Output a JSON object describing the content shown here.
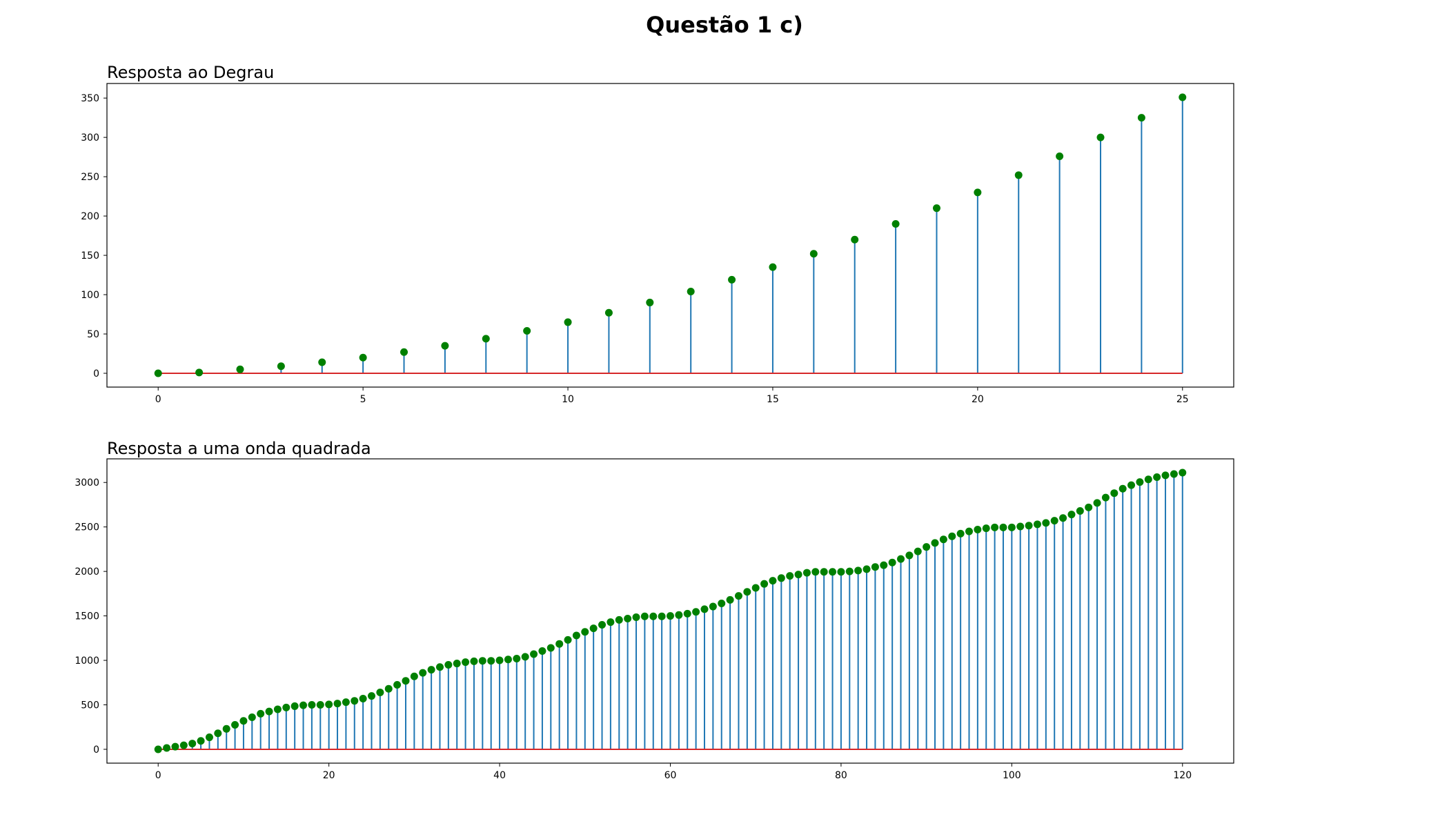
{
  "figure": {
    "suptitle": "Questão 1 c)"
  },
  "chart_data": [
    {
      "type": "stem",
      "title": "Resposta ao Degrau",
      "xlabel": "",
      "ylabel": "",
      "x": [
        0,
        1,
        2,
        3,
        4,
        5,
        6,
        7,
        8,
        9,
        10,
        11,
        12,
        13,
        14,
        15,
        16,
        17,
        18,
        19,
        20,
        21,
        22,
        23,
        24,
        25
      ],
      "values": [
        0,
        1,
        5,
        9,
        14,
        20,
        27,
        35,
        44,
        54,
        65,
        77,
        90,
        104,
        119,
        135,
        152,
        170,
        190,
        210,
        230,
        252,
        276,
        300,
        325,
        351
      ],
      "xlim": [
        -1.25,
        26.25
      ],
      "ylim": [
        -17.55,
        368.55
      ],
      "xticks": [
        0,
        5,
        10,
        15,
        20,
        25
      ],
      "yticks": [
        0,
        50,
        100,
        150,
        200,
        250,
        300,
        350
      ],
      "grid": false,
      "colors": {
        "stem": "#1f77b4",
        "marker": "#008000",
        "baseline": "#d62728"
      }
    },
    {
      "type": "stem",
      "title": "Resposta a uma onda quadrada",
      "xlabel": "",
      "ylabel": "",
      "x": [
        0,
        1,
        2,
        3,
        4,
        5,
        6,
        7,
        8,
        9,
        10,
        11,
        12,
        13,
        14,
        15,
        16,
        17,
        18,
        19,
        20,
        21,
        22,
        23,
        24,
        25,
        26,
        27,
        28,
        29,
        30,
        31,
        32,
        33,
        34,
        35,
        36,
        37,
        38,
        39,
        40,
        41,
        42,
        43,
        44,
        45,
        46,
        47,
        48,
        49,
        50,
        51,
        52,
        53,
        54,
        55,
        56,
        57,
        58,
        59,
        60,
        61,
        62,
        63,
        64,
        65,
        66,
        67,
        68,
        69,
        70,
        71,
        72,
        73,
        74,
        75,
        76,
        77,
        78,
        79,
        80,
        81,
        82,
        83,
        84,
        85,
        86,
        87,
        88,
        89,
        90,
        91,
        92,
        93,
        94,
        95,
        96,
        97,
        98,
        99,
        100,
        101,
        102,
        103,
        104,
        105,
        106,
        107,
        108,
        109,
        110,
        111,
        112,
        113,
        114,
        115,
        116,
        117,
        118,
        119,
        120
      ],
      "values": [
        0,
        15,
        30,
        45,
        65,
        95,
        135,
        180,
        230,
        275,
        320,
        360,
        400,
        425,
        450,
        470,
        485,
        495,
        500,
        500,
        505,
        515,
        530,
        545,
        570,
        600,
        640,
        680,
        725,
        770,
        820,
        860,
        895,
        925,
        950,
        965,
        980,
        990,
        995,
        995,
        1000,
        1010,
        1020,
        1040,
        1070,
        1105,
        1140,
        1185,
        1230,
        1280,
        1320,
        1360,
        1400,
        1430,
        1455,
        1470,
        1485,
        1495,
        1495,
        1495,
        1500,
        1510,
        1525,
        1545,
        1575,
        1605,
        1640,
        1680,
        1725,
        1770,
        1815,
        1860,
        1895,
        1925,
        1950,
        1965,
        1985,
        1995,
        1995,
        1995,
        1995,
        2000,
        2010,
        2025,
        2050,
        2070,
        2100,
        2140,
        2180,
        2225,
        2275,
        2320,
        2360,
        2395,
        2425,
        2450,
        2470,
        2485,
        2495,
        2495,
        2495,
        2505,
        2515,
        2530,
        2545,
        2570,
        2600,
        2640,
        2680,
        2720,
        2770,
        2830,
        2880,
        2930,
        2970,
        3005,
        3035,
        3060,
        3080,
        3095,
        3110
      ],
      "xlim": [
        -6,
        126
      ],
      "ylim": [
        -155.5,
        3265.5
      ],
      "xticks": [
        0,
        20,
        40,
        60,
        80,
        100,
        120
      ],
      "yticks": [
        0,
        500,
        1000,
        1500,
        2000,
        2500,
        3000
      ],
      "grid": false,
      "colors": {
        "stem": "#1f77b4",
        "marker": "#008000",
        "baseline": "#d62728"
      }
    }
  ]
}
